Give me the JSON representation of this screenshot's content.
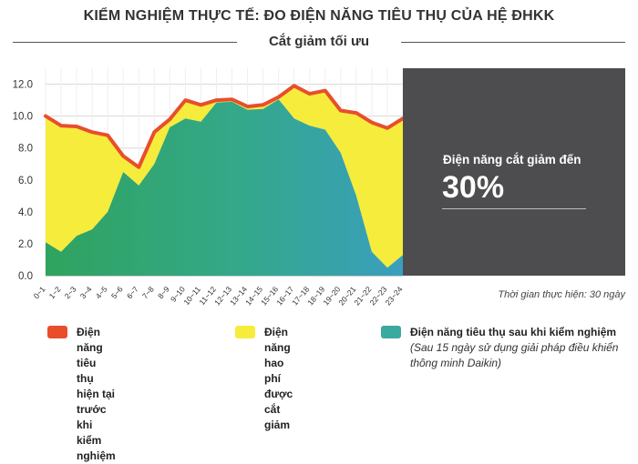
{
  "header": {
    "title": "KIỂM NGHIỆM THỰC TẾ: ĐO ĐIỆN NĂNG TIÊU THỤ CỦA HỆ ĐHKK",
    "subtitle": "Cắt giảm tối ưu"
  },
  "callout": {
    "label": "Điện năng cắt giảm đến",
    "value": "30%"
  },
  "note": "Thời gian thực hiện: 30 ngày",
  "legend": [
    {
      "line1": "Điện năng tiêu thụ hiện tại",
      "line2": "trước khi kiểm nghiệm",
      "sub": "",
      "color": "#e84e2c"
    },
    {
      "line1": "Điện năng hao phí",
      "line2": "được cắt giảm",
      "sub": "",
      "color": "#f6ec3c"
    },
    {
      "line1": "Điện năng tiêu thụ sau khi kiểm nghiệm",
      "line2": "",
      "sub": "(Sau 15 ngày sử dụng giải pháp điều khiển thông minh Daikin)",
      "color": "#3aa9a0"
    }
  ],
  "chart_data": {
    "type": "area",
    "categories": [
      "0~1",
      "1~2",
      "2~3",
      "3~4",
      "4~5",
      "5~6",
      "6~7",
      "7~8",
      "8~9",
      "9~10",
      "10~11",
      "11~12",
      "12~13",
      "13~14",
      "14~15",
      "15~16",
      "16~17",
      "17~18",
      "18~19",
      "19~20",
      "20~21",
      "21~22",
      "22~23",
      "23~24"
    ],
    "series": [
      {
        "name": "Điện năng tiêu thụ hiện tại trước khi kiểm nghiệm",
        "values": [
          10.0,
          9.4,
          9.35,
          9.0,
          8.8,
          7.5,
          6.8,
          9.0,
          9.8,
          11.0,
          10.7,
          11.0,
          11.05,
          10.6,
          10.7,
          11.2,
          11.9,
          11.4,
          11.6,
          10.35,
          10.2,
          9.6,
          9.25,
          9.85
        ],
        "color": "#e84e2c"
      },
      {
        "name": "Điện năng tiêu thụ sau khi kiểm nghiệm",
        "values": [
          2.1,
          1.5,
          2.5,
          2.9,
          4.0,
          6.5,
          5.65,
          7.0,
          9.3,
          9.85,
          9.65,
          10.85,
          10.9,
          10.4,
          10.45,
          11.05,
          9.85,
          9.4,
          9.15,
          7.7,
          5.0,
          1.5,
          0.5,
          1.3
        ],
        "color": "#3aa9a0"
      }
    ],
    "fill_between_color": "#f6ec3c",
    "yticks": [
      "0.0",
      "2.0",
      "4.0",
      "6.0",
      "8.0",
      "10.0",
      "12.0"
    ],
    "ylim": [
      0,
      13
    ],
    "grid": true
  }
}
